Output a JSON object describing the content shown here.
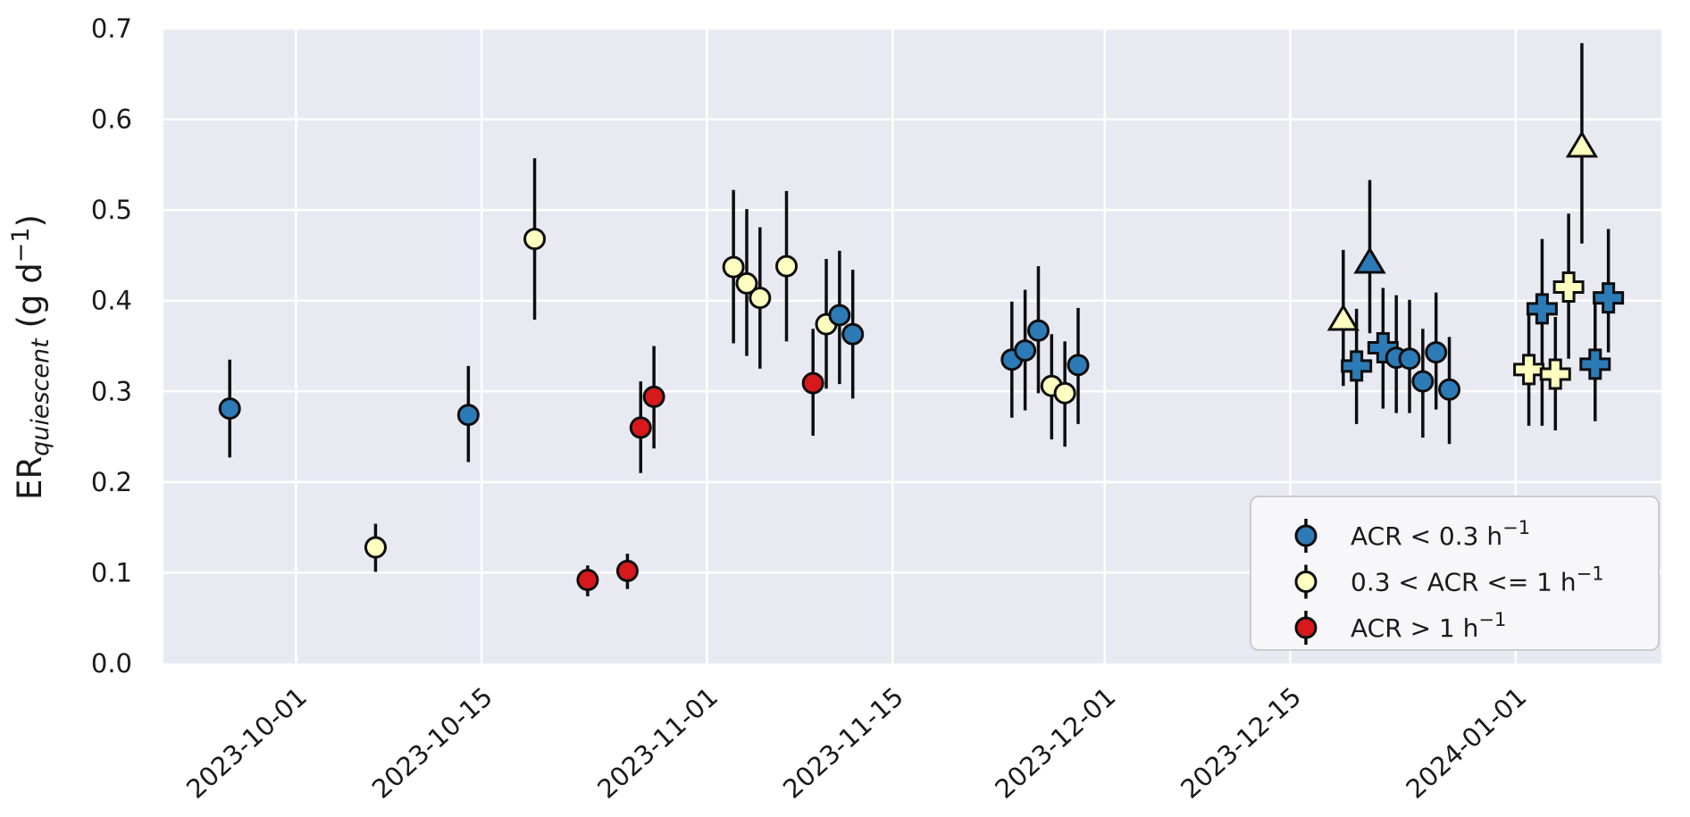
{
  "colors": {
    "figure_bg": "#ffffff",
    "plot_bg": "#e9e9f2",
    "grid": "#ffffff",
    "marker_edge": "#0d0d0d",
    "error_bar": "#0d0d0d",
    "text": "#1a1a1a",
    "legend_bg": "#f7f7fa",
    "legend_border": "#cccccc",
    "acr_low": "#2c7bb6",
    "acr_mid": "#ffffbf",
    "acr_high": "#d7191c"
  },
  "axes": {
    "y_label_parts": {
      "main": "ER",
      "sub": "quiescent",
      "unit_pre": " (g d",
      "sup": "−1",
      "unit_post": ")"
    },
    "y_label_plain": "ER_quiescent (g d^-1)",
    "y_ticks": [
      {
        "label": "0.0",
        "value": 0.0
      },
      {
        "label": "0.1",
        "value": 0.1
      },
      {
        "label": "0.2",
        "value": 0.2
      },
      {
        "label": "0.3",
        "value": 0.3
      },
      {
        "label": "0.4",
        "value": 0.4
      },
      {
        "label": "0.5",
        "value": 0.5
      },
      {
        "label": "0.6",
        "value": 0.6
      },
      {
        "label": "0.7",
        "value": 0.7
      }
    ],
    "x_ticks": [
      {
        "label": "2023-10-01",
        "date": "2023-10-01"
      },
      {
        "label": "2023-10-15",
        "date": "2023-10-15"
      },
      {
        "label": "2023-11-01",
        "date": "2023-11-01"
      },
      {
        "label": "2023-11-15",
        "date": "2023-11-15"
      },
      {
        "label": "2023-12-01",
        "date": "2023-12-01"
      },
      {
        "label": "2023-12-15",
        "date": "2023-12-15"
      },
      {
        "label": "2024-01-01",
        "date": "2024-01-01"
      }
    ],
    "x_min_date": "2023-09-21",
    "x_max_date": "2024-01-12",
    "y_min": 0.0,
    "y_max": 0.7
  },
  "legend": {
    "position": "lower right",
    "entries": [
      {
        "text": "ACR < 0.3 h",
        "sup": "−1",
        "color_key": "acr_low"
      },
      {
        "text": "0.3 < ACR <= 1 h",
        "sup": "−1",
        "color_key": "acr_mid"
      },
      {
        "text": "ACR > 1 h",
        "sup": "−1",
        "color_key": "acr_high"
      }
    ]
  },
  "chart_data": {
    "type": "scatter",
    "title": "",
    "xlabel": "",
    "ylabel": "ER_quiescent (g d^-1)",
    "ylim": [
      0.0,
      0.7
    ],
    "xlim": [
      "2023-09-21",
      "2024-01-12"
    ],
    "grid": true,
    "error_bars": true,
    "legend_position": "lower right",
    "series": [
      {
        "name": "ACR < 0.3 h^-1",
        "color_key": "acr_low",
        "points": [
          {
            "date": "2023-09-26",
            "y": 0.281,
            "lo": 0.227,
            "hi": 0.335,
            "marker": "circle"
          },
          {
            "date": "2023-10-14",
            "y": 0.274,
            "lo": 0.222,
            "hi": 0.328,
            "marker": "circle"
          },
          {
            "date": "2023-11-11",
            "y": 0.384,
            "lo": 0.308,
            "hi": 0.455,
            "marker": "circle"
          },
          {
            "date": "2023-11-12",
            "y": 0.363,
            "lo": 0.292,
            "hi": 0.434,
            "marker": "circle"
          },
          {
            "date": "2023-11-24",
            "y": 0.335,
            "lo": 0.271,
            "hi": 0.399,
            "marker": "circle"
          },
          {
            "date": "2023-11-25",
            "y": 0.345,
            "lo": 0.279,
            "hi": 0.412,
            "marker": "circle"
          },
          {
            "date": "2023-11-26",
            "y": 0.367,
            "lo": 0.298,
            "hi": 0.438,
            "marker": "circle"
          },
          {
            "date": "2023-11-29",
            "y": 0.329,
            "lo": 0.264,
            "hi": 0.392,
            "marker": "circle"
          },
          {
            "date": "2023-12-20",
            "y": 0.328,
            "lo": 0.264,
            "hi": 0.391,
            "marker": "plus"
          },
          {
            "date": "2023-12-21",
            "y": 0.442,
            "lo": 0.364,
            "hi": 0.533,
            "marker": "triangle"
          },
          {
            "date": "2023-12-22",
            "y": 0.348,
            "lo": 0.281,
            "hi": 0.414,
            "marker": "plus"
          },
          {
            "date": "2023-12-23",
            "y": 0.337,
            "lo": 0.276,
            "hi": 0.406,
            "marker": "circle"
          },
          {
            "date": "2023-12-24",
            "y": 0.336,
            "lo": 0.276,
            "hi": 0.401,
            "marker": "circle"
          },
          {
            "date": "2023-12-25",
            "y": 0.311,
            "lo": 0.249,
            "hi": 0.369,
            "marker": "circle"
          },
          {
            "date": "2023-12-26",
            "y": 0.343,
            "lo": 0.28,
            "hi": 0.409,
            "marker": "circle"
          },
          {
            "date": "2023-12-27",
            "y": 0.302,
            "lo": 0.242,
            "hi": 0.36,
            "marker": "circle"
          },
          {
            "date": "2024-01-03",
            "y": 0.391,
            "lo": 0.262,
            "hi": 0.468,
            "marker": "plus"
          },
          {
            "date": "2024-01-07",
            "y": 0.33,
            "lo": 0.267,
            "hi": 0.4,
            "marker": "plus"
          },
          {
            "date": "2024-01-08",
            "y": 0.403,
            "lo": 0.343,
            "hi": 0.479,
            "marker": "plus"
          }
        ]
      },
      {
        "name": "0.3 < ACR <= 1 h^-1",
        "color_key": "acr_mid",
        "points": [
          {
            "date": "2023-10-07",
            "y": 0.128,
            "lo": 0.101,
            "hi": 0.154,
            "marker": "circle"
          },
          {
            "date": "2023-10-19",
            "y": 0.468,
            "lo": 0.379,
            "hi": 0.557,
            "marker": "circle"
          },
          {
            "date": "2023-11-03",
            "y": 0.437,
            "lo": 0.353,
            "hi": 0.522,
            "marker": "circle"
          },
          {
            "date": "2023-11-04",
            "y": 0.419,
            "lo": 0.339,
            "hi": 0.501,
            "marker": "circle"
          },
          {
            "date": "2023-11-05",
            "y": 0.403,
            "lo": 0.325,
            "hi": 0.481,
            "marker": "circle"
          },
          {
            "date": "2023-11-07",
            "y": 0.438,
            "lo": 0.355,
            "hi": 0.521,
            "marker": "circle"
          },
          {
            "date": "2023-11-10",
            "y": 0.374,
            "lo": 0.303,
            "hi": 0.446,
            "marker": "circle"
          },
          {
            "date": "2023-11-27",
            "y": 0.306,
            "lo": 0.247,
            "hi": 0.363,
            "marker": "circle"
          },
          {
            "date": "2023-11-28",
            "y": 0.298,
            "lo": 0.239,
            "hi": 0.355,
            "marker": "circle"
          },
          {
            "date": "2023-12-19",
            "y": 0.379,
            "lo": 0.306,
            "hi": 0.456,
            "marker": "triangle"
          },
          {
            "date": "2024-01-02",
            "y": 0.324,
            "lo": 0.262,
            "hi": 0.389,
            "marker": "plus"
          },
          {
            "date": "2024-01-04",
            "y": 0.319,
            "lo": 0.257,
            "hi": 0.382,
            "marker": "plus"
          },
          {
            "date": "2024-01-05",
            "y": 0.415,
            "lo": 0.336,
            "hi": 0.496,
            "marker": "plus"
          },
          {
            "date": "2024-01-06",
            "y": 0.57,
            "lo": 0.463,
            "hi": 0.684,
            "marker": "triangle"
          }
        ]
      },
      {
        "name": "ACR > 1 h^-1",
        "color_key": "acr_high",
        "points": [
          {
            "date": "2023-10-23",
            "y": 0.092,
            "lo": 0.074,
            "hi": 0.108,
            "marker": "circle"
          },
          {
            "date": "2023-10-26",
            "y": 0.102,
            "lo": 0.082,
            "hi": 0.121,
            "marker": "circle"
          },
          {
            "date": "2023-10-27",
            "y": 0.26,
            "lo": 0.21,
            "hi": 0.311,
            "marker": "circle"
          },
          {
            "date": "2023-10-28",
            "y": 0.294,
            "lo": 0.237,
            "hi": 0.35,
            "marker": "circle"
          },
          {
            "date": "2023-11-09",
            "y": 0.309,
            "lo": 0.251,
            "hi": 0.369,
            "marker": "circle"
          }
        ]
      }
    ]
  }
}
